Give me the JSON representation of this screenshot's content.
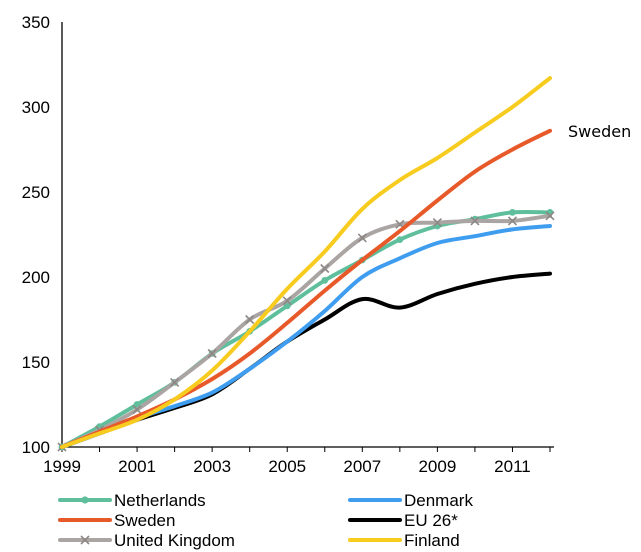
{
  "chart_data": {
    "type": "line",
    "x": [
      1999,
      2000,
      2001,
      2002,
      2003,
      2004,
      2005,
      2006,
      2007,
      2008,
      2009,
      2010,
      2011,
      2012
    ],
    "x_tick_labels": [
      "1999",
      "2001",
      "2003",
      "2005",
      "2007",
      "2009",
      "2011"
    ],
    "ylim": [
      100,
      350
    ],
    "y_ticks": [
      100,
      150,
      200,
      250,
      300,
      350
    ],
    "grid": false,
    "legend_placement": "bottom",
    "annotation": "Sweden",
    "series": [
      {
        "name": "Netherlands",
        "color": "#5fbf9c",
        "marker": "dot",
        "values": [
          100,
          112,
          125,
          138,
          155,
          168,
          183,
          198,
          210,
          222,
          230,
          234,
          238,
          238
        ]
      },
      {
        "name": "Denmark",
        "color": "#3f9df0",
        "marker": "none",
        "values": [
          100,
          108,
          117,
          124,
          132,
          146,
          162,
          180,
          200,
          211,
          220,
          224,
          228,
          230
        ]
      },
      {
        "name": "Sweden",
        "color": "#e8592a",
        "marker": "none",
        "values": [
          100,
          109,
          118,
          128,
          140,
          155,
          173,
          192,
          210,
          227,
          245,
          262,
          275,
          286
        ]
      },
      {
        "name": "EU 26*",
        "color": "#000000",
        "marker": "none",
        "values": [
          100,
          108,
          116,
          123,
          131,
          146,
          162,
          175,
          187,
          182,
          190,
          196,
          200,
          202
        ]
      },
      {
        "name": "United Kingdom",
        "color": "#aaa5a3",
        "marker": "x",
        "values": [
          100,
          110,
          122,
          138,
          155,
          175,
          186,
          205,
          223,
          231,
          232,
          233,
          233,
          236
        ]
      },
      {
        "name": "Finland",
        "color": "#f7cc1f",
        "marker": "none",
        "values": [
          100,
          108,
          116,
          128,
          145,
          168,
          193,
          215,
          240,
          257,
          270,
          285,
          300,
          317
        ]
      }
    ]
  }
}
